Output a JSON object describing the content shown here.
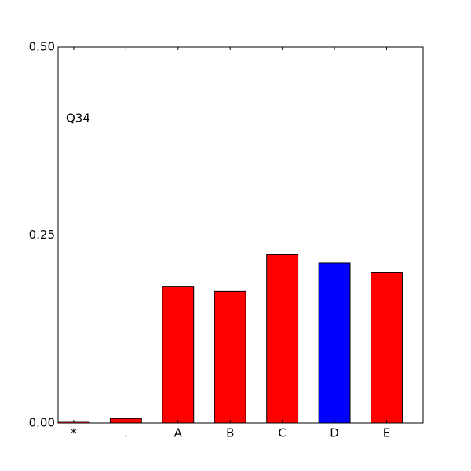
{
  "chart_data": {
    "type": "bar",
    "annotation": "Q34",
    "categories": [
      "*",
      ".",
      "A",
      "B",
      "C",
      "D",
      "E"
    ],
    "values": [
      0.002,
      0.006,
      0.182,
      0.175,
      0.224,
      0.213,
      0.2
    ],
    "colors": [
      "#ff0000",
      "#ff0000",
      "#ff0000",
      "#ff0000",
      "#ff0000",
      "#0000ff",
      "#ff0000"
    ],
    "ylim": [
      0,
      0.5
    ],
    "yticks": [
      {
        "value": 0,
        "label": "0.00"
      },
      {
        "value": 0.25,
        "label": "0.25"
      },
      {
        "value": 0.5,
        "label": "0.50"
      }
    ],
    "grid": false
  }
}
